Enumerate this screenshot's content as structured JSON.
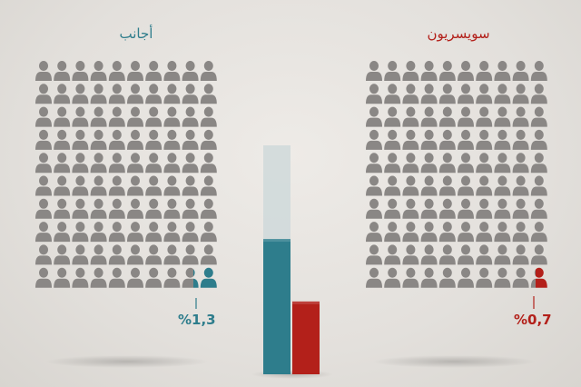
{
  "chart_data": {
    "type": "bar",
    "categories": [
      "أجانب",
      "سويسريون"
    ],
    "values": [
      1.3,
      0.7
    ],
    "labels": [
      "%1,3",
      "%0,7"
    ],
    "colors": [
      "#2e7d8c",
      "#b3201a"
    ],
    "pictogram_total_icons": 100,
    "icon_color_neutral": "#8a8785"
  }
}
